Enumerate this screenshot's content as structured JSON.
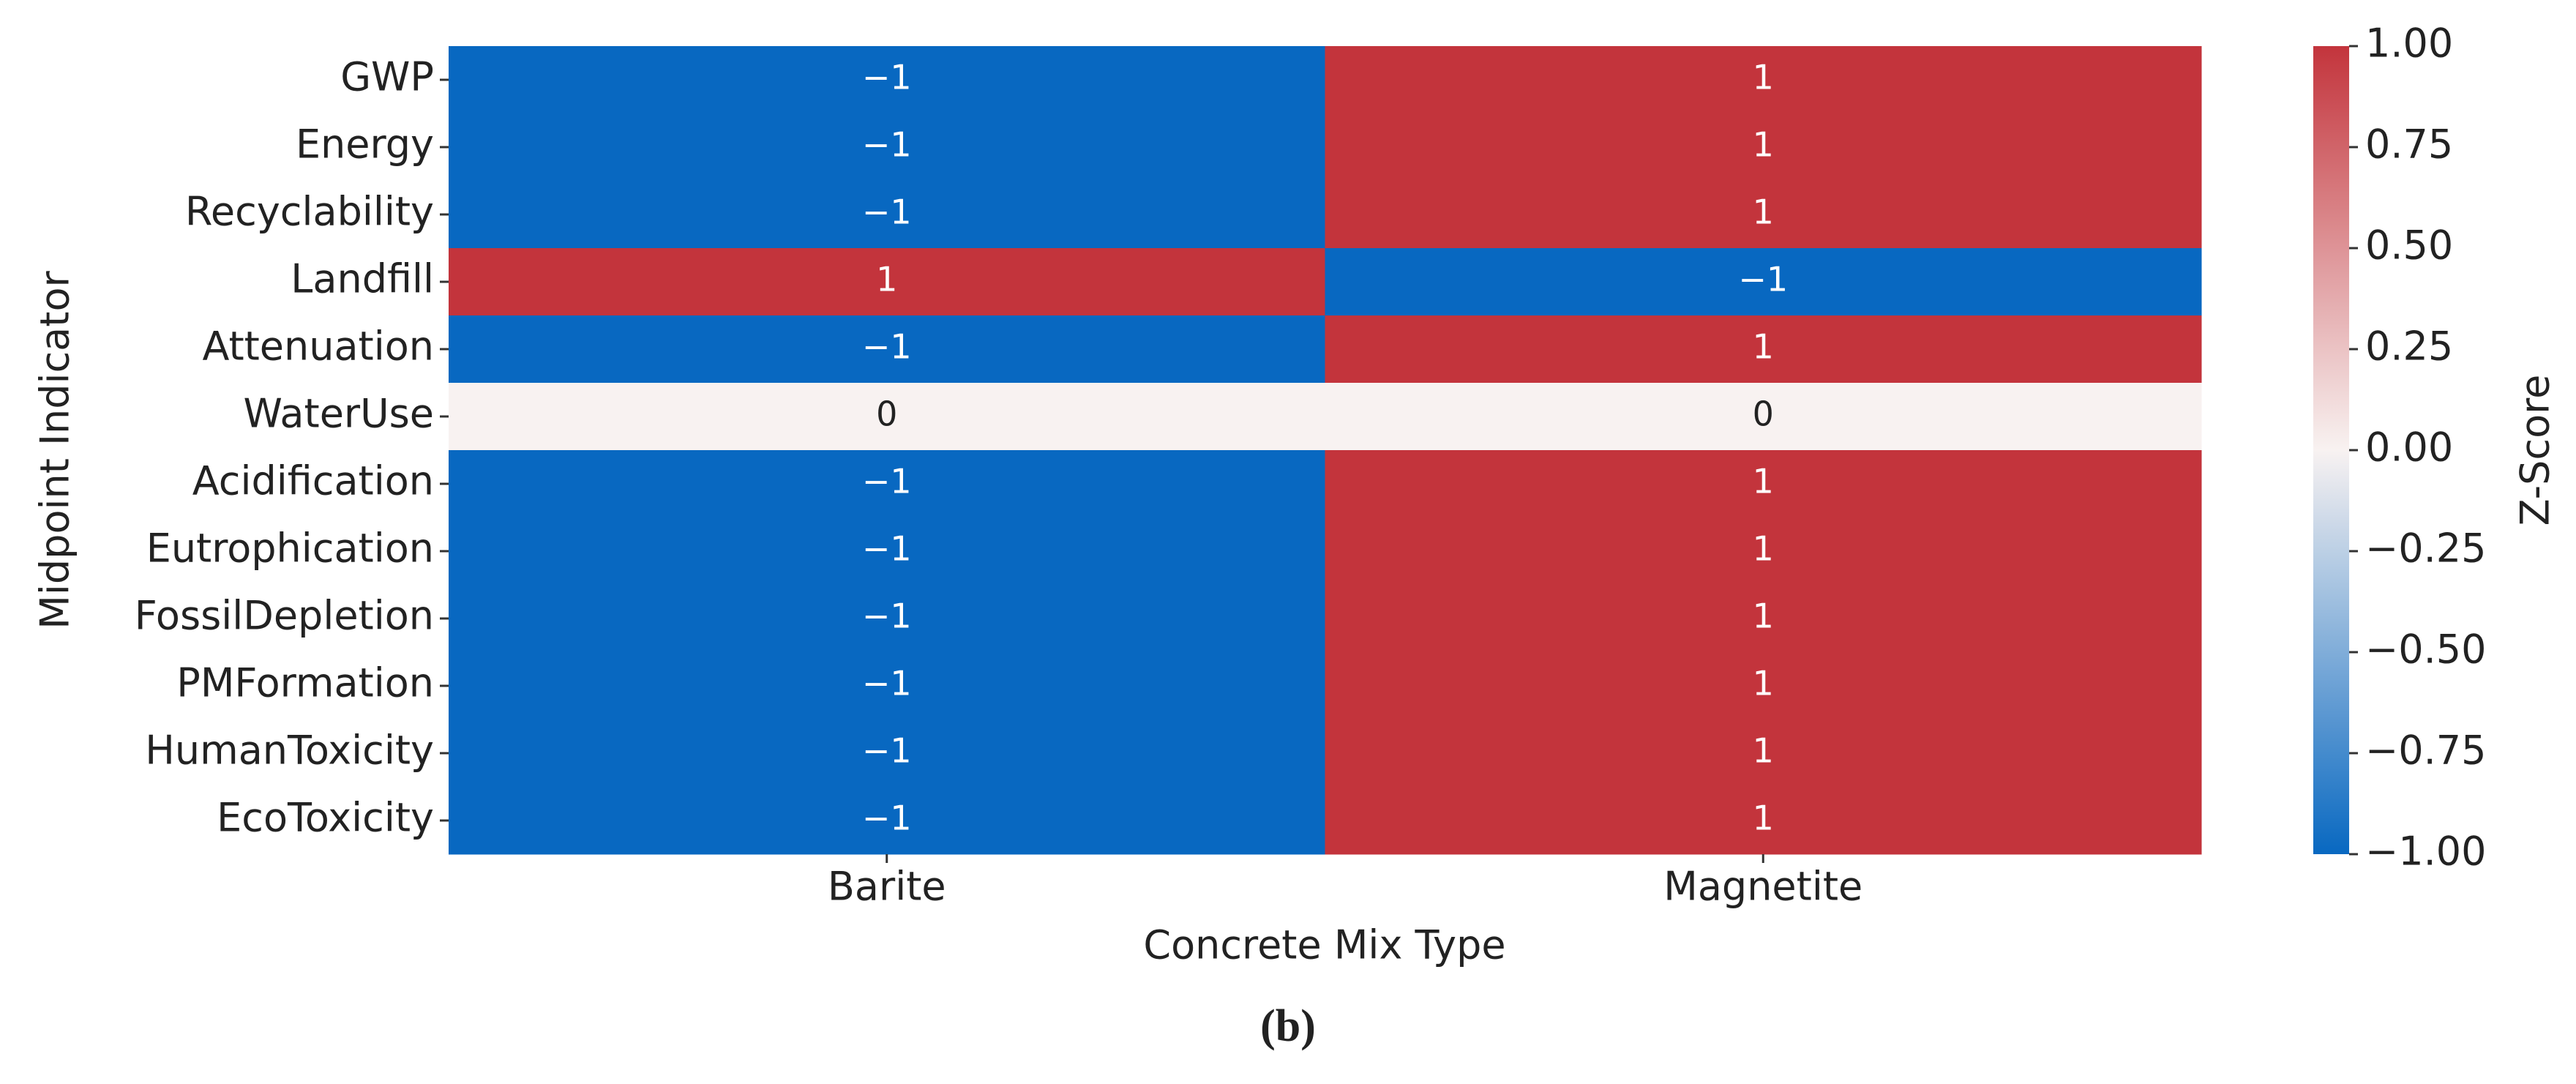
{
  "chart_data": {
    "type": "heatmap",
    "x_label": "Concrete Mix Type",
    "y_label": "Midpoint Indicator",
    "x_categories": [
      "Barite",
      "Magnetite"
    ],
    "y_categories": [
      "GWP",
      "Energy",
      "Recyclability",
      "Landfill",
      "Attenuation",
      "WaterUse",
      "Acidification",
      "Eutrophication",
      "FossilDepletion",
      "PMFormation",
      "HumanToxicity",
      "EcoToxicity"
    ],
    "values": [
      [
        -1,
        1
      ],
      [
        -1,
        1
      ],
      [
        -1,
        1
      ],
      [
        1,
        -1
      ],
      [
        -1,
        1
      ],
      [
        0,
        0
      ],
      [
        -1,
        1
      ],
      [
        -1,
        1
      ],
      [
        -1,
        1
      ],
      [
        -1,
        1
      ],
      [
        -1,
        1
      ],
      [
        -1,
        1
      ]
    ],
    "value_labels": [
      [
        "−1",
        "1"
      ],
      [
        "−1",
        "1"
      ],
      [
        "−1",
        "1"
      ],
      [
        "1",
        "−1"
      ],
      [
        "−1",
        "1"
      ],
      [
        "0",
        "0"
      ],
      [
        "−1",
        "1"
      ],
      [
        "−1",
        "1"
      ],
      [
        "−1",
        "1"
      ],
      [
        "−1",
        "1"
      ],
      [
        "−1",
        "1"
      ],
      [
        "−1",
        "1"
      ]
    ],
    "colors": [
      "#0868c1",
      "#f8f2f1",
      "#c3343c"
    ],
    "colorbar": {
      "label": "Z-Score",
      "lim": [
        -1,
        1
      ],
      "ticks": [
        {
          "value": 1,
          "label": "1.00"
        },
        {
          "value": 0.75,
          "label": "0.75"
        },
        {
          "value": 0.5,
          "label": "0.50"
        },
        {
          "value": 0.25,
          "label": "0.25"
        },
        {
          "value": 0,
          "label": "0.00"
        },
        {
          "value": -0.25,
          "label": "−0.25"
        },
        {
          "value": -0.5,
          "label": "−0.50"
        },
        {
          "value": -0.75,
          "label": "−0.75"
        },
        {
          "value": -1,
          "label": "−1.00"
        }
      ]
    },
    "caption": "(b)"
  }
}
